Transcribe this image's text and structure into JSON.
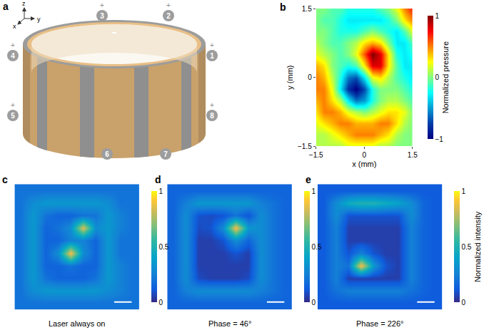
{
  "diagram": {
    "title": "a",
    "axes": [
      "x",
      "y",
      "z"
    ],
    "elements": [
      {
        "label": "1",
        "sign": "+"
      },
      {
        "label": "2",
        "sign": "+"
      },
      {
        "label": "3",
        "sign": "+"
      },
      {
        "label": "4",
        "sign": "+"
      },
      {
        "label": "5",
        "sign": "+"
      },
      {
        "label": "6"
      },
      {
        "label": "7"
      },
      {
        "label": "8",
        "sign": "+"
      }
    ]
  },
  "chart_data": [
    {
      "type": "heatmap",
      "title": "b",
      "xlabel": "x (mm)",
      "ylabel": "y (mm)",
      "x": [
        -1.5,
        -1.25,
        -1.0,
        -0.75,
        -0.5,
        -0.25,
        0,
        0.25,
        0.5,
        0.75,
        1.0,
        1.25,
        1.5
      ],
      "y": [
        -1.5,
        -1.25,
        -1.0,
        -0.75,
        -0.5,
        -0.25,
        0,
        0.25,
        0.5,
        0.75,
        1.0,
        1.25,
        1.5
      ],
      "z": [
        [
          0.1,
          0.1,
          0.1,
          0.1,
          0.2,
          0.2,
          0.2,
          0.2,
          0.1,
          0.1,
          0,
          0,
          0
        ],
        [
          0.1,
          0.1,
          0.2,
          0.3,
          0.4,
          0.5,
          0.5,
          0.5,
          0.4,
          0.3,
          0.1,
          0,
          0
        ],
        [
          0.2,
          0.3,
          0.4,
          0.5,
          0.5,
          0.4,
          0.4,
          0.4,
          0.5,
          0.5,
          0.3,
          0.1,
          0
        ],
        [
          0.3,
          0.5,
          0.5,
          0.4,
          0.2,
          0.1,
          0,
          0.1,
          0.2,
          0.3,
          0.3,
          0.2,
          0
        ],
        [
          0.4,
          0.5,
          0.3,
          0.1,
          -0.3,
          -0.6,
          -0.5,
          -0.2,
          0,
          0.1,
          0.1,
          0,
          -0.1
        ],
        [
          0.5,
          0.5,
          0.2,
          -0.3,
          -0.8,
          -1.0,
          -0.7,
          -0.2,
          0,
          0,
          0,
          -0.1,
          -0.2
        ],
        [
          0.5,
          0.4,
          0.1,
          -0.2,
          -0.6,
          -0.7,
          -0.3,
          0.2,
          0.3,
          0.1,
          -0.1,
          -0.2,
          -0.3
        ],
        [
          0.4,
          0.3,
          0,
          -0.1,
          -0.2,
          -0.1,
          0.3,
          0.8,
          0.8,
          0.3,
          -0.1,
          -0.3,
          -0.3
        ],
        [
          0.2,
          0.1,
          0,
          -0.1,
          0,
          0.2,
          0.6,
          1.0,
          0.8,
          0.3,
          -0.2,
          -0.3,
          -0.2
        ],
        [
          0.1,
          0,
          -0.1,
          -0.1,
          0,
          0.1,
          0.3,
          0.4,
          0.3,
          0,
          -0.3,
          -0.3,
          -0.1
        ],
        [
          0,
          0,
          -0.1,
          -0.2,
          -0.2,
          -0.2,
          -0.1,
          0,
          -0.1,
          -0.2,
          -0.3,
          -0.1,
          0.2
        ],
        [
          0,
          -0.1,
          -0.1,
          -0.2,
          -0.3,
          -0.3,
          -0.3,
          -0.3,
          -0.3,
          -0.2,
          0,
          0.3,
          0.5
        ],
        [
          0,
          0,
          -0.1,
          -0.1,
          -0.2,
          -0.2,
          -0.2,
          -0.2,
          -0.1,
          0,
          0.2,
          0.5,
          0.7
        ]
      ],
      "xlim": [
        -1.5,
        1.5
      ],
      "ylim": [
        -1.5,
        1.5
      ],
      "xticks": [
        -1.5,
        0,
        1.5
      ],
      "yticks": [
        -1.5,
        0,
        1.5
      ],
      "colorbar": {
        "title": "Normalized pressure",
        "range": [
          -1,
          1
        ],
        "ticks": [
          -1,
          0,
          1
        ]
      }
    },
    {
      "type": "heatmap",
      "title": "c",
      "caption": "Laser always on",
      "tick_labels": false,
      "z": [
        [
          0.2,
          0.2,
          0.2,
          0.2,
          0.2,
          0.2,
          0.2,
          0.2,
          0.2,
          0.2
        ],
        [
          0.2,
          0.3,
          0.35,
          0.35,
          0.35,
          0.35,
          0.35,
          0.3,
          0.25,
          0.2
        ],
        [
          0.2,
          0.35,
          0.2,
          0.15,
          0.15,
          0.15,
          0.2,
          0.35,
          0.25,
          0.2
        ],
        [
          0.2,
          0.35,
          0.15,
          0.15,
          0.2,
          0.15,
          0.15,
          0.35,
          0.25,
          0.2
        ],
        [
          0.2,
          0.35,
          0.15,
          0.3,
          0.9,
          0.3,
          0.15,
          0.35,
          0.2,
          0.2
        ],
        [
          0.2,
          0.35,
          0.15,
          0.15,
          0.25,
          0.25,
          0.15,
          0.35,
          0.2,
          0.2
        ],
        [
          0.2,
          0.35,
          0.15,
          0.2,
          0.3,
          0.85,
          0.3,
          0.35,
          0.25,
          0.2
        ],
        [
          0.2,
          0.35,
          0.2,
          0.15,
          0.15,
          0.2,
          0.2,
          0.35,
          0.25,
          0.2
        ],
        [
          0.2,
          0.3,
          0.35,
          0.35,
          0.35,
          0.35,
          0.35,
          0.3,
          0.2,
          0.2
        ],
        [
          0.2,
          0.2,
          0.2,
          0.2,
          0.2,
          0.2,
          0.2,
          0.2,
          0.2,
          0.2
        ]
      ],
      "colorbar": {
        "range": [
          0,
          1
        ],
        "ticks": [
          0,
          0.5,
          1
        ]
      }
    },
    {
      "type": "heatmap",
      "title": "d",
      "caption": "Phase = 46°",
      "tick_labels": false,
      "z": [
        [
          0.15,
          0.15,
          0.15,
          0.15,
          0.15,
          0.15,
          0.15,
          0.15,
          0.15,
          0.15
        ],
        [
          0.15,
          0.25,
          0.3,
          0.3,
          0.3,
          0.3,
          0.3,
          0.25,
          0.2,
          0.15
        ],
        [
          0.15,
          0.3,
          0.08,
          0.05,
          0.05,
          0.05,
          0.08,
          0.3,
          0.2,
          0.15
        ],
        [
          0.15,
          0.3,
          0.05,
          0.05,
          0.05,
          0.05,
          0.05,
          0.3,
          0.2,
          0.15
        ],
        [
          0.15,
          0.3,
          0.05,
          0.05,
          0.05,
          0.1,
          0.05,
          0.3,
          0.2,
          0.15
        ],
        [
          0.15,
          0.3,
          0.05,
          0.05,
          0.1,
          0.3,
          0.15,
          0.3,
          0.2,
          0.15
        ],
        [
          0.15,
          0.3,
          0.08,
          0.1,
          0.3,
          0.9,
          0.35,
          0.3,
          0.2,
          0.15
        ],
        [
          0.15,
          0.3,
          0.1,
          0.08,
          0.1,
          0.2,
          0.1,
          0.3,
          0.2,
          0.15
        ],
        [
          0.15,
          0.25,
          0.35,
          0.35,
          0.35,
          0.35,
          0.35,
          0.25,
          0.2,
          0.15
        ],
        [
          0.15,
          0.15,
          0.15,
          0.15,
          0.15,
          0.15,
          0.15,
          0.15,
          0.15,
          0.15
        ]
      ],
      "colorbar": {
        "range": [
          0,
          1
        ],
        "ticks": [
          0,
          0.5,
          1
        ]
      }
    },
    {
      "type": "heatmap",
      "title": "e",
      "caption": "Phase = 226°",
      "tick_labels": false,
      "z": [
        [
          0.12,
          0.12,
          0.12,
          0.12,
          0.12,
          0.12,
          0.12,
          0.12,
          0.12,
          0.12
        ],
        [
          0.12,
          0.2,
          0.25,
          0.25,
          0.25,
          0.25,
          0.25,
          0.2,
          0.15,
          0.12
        ],
        [
          0.12,
          0.25,
          0.05,
          0.05,
          0.05,
          0.05,
          0.05,
          0.25,
          0.15,
          0.12
        ],
        [
          0.12,
          0.25,
          0.2,
          0.9,
          0.35,
          0.1,
          0.05,
          0.25,
          0.15,
          0.12
        ],
        [
          0.12,
          0.25,
          0.1,
          0.25,
          0.1,
          0.05,
          0.05,
          0.25,
          0.15,
          0.12
        ],
        [
          0.12,
          0.25,
          0.05,
          0.05,
          0.05,
          0.05,
          0.05,
          0.25,
          0.15,
          0.12
        ],
        [
          0.12,
          0.25,
          0.05,
          0.05,
          0.05,
          0.05,
          0.05,
          0.25,
          0.15,
          0.12
        ],
        [
          0.12,
          0.3,
          0.1,
          0.1,
          0.1,
          0.1,
          0.1,
          0.3,
          0.15,
          0.12
        ],
        [
          0.12,
          0.3,
          0.45,
          0.5,
          0.5,
          0.45,
          0.4,
          0.3,
          0.15,
          0.12
        ],
        [
          0.12,
          0.12,
          0.12,
          0.12,
          0.12,
          0.12,
          0.12,
          0.12,
          0.12,
          0.12
        ]
      ],
      "colorbar": {
        "title": "Normalized intensity",
        "range": [
          0,
          1
        ],
        "ticks": [
          0,
          0.5,
          1
        ]
      }
    }
  ]
}
